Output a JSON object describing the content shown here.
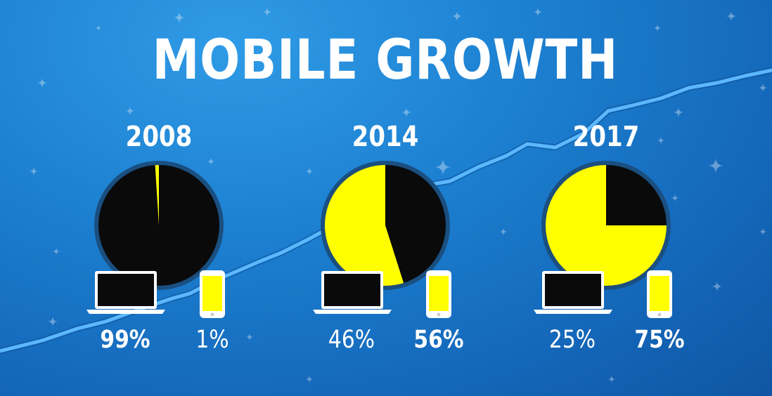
{
  "title": "MOBILE GROWTH",
  "colors": {
    "background": "#1a78cc",
    "trend_line": "#5cb8ff",
    "mobile": "#ffff00",
    "desktop": "#0a0a0a",
    "pie_border": "#1a4f80",
    "text": "#ffffff"
  },
  "icons": {
    "desktop": "laptop-icon",
    "mobile": "smartphone-icon"
  },
  "chart_data": [
    {
      "type": "pie",
      "title": "2008",
      "categories": [
        "desktop",
        "mobile"
      ],
      "values": [
        99,
        1
      ],
      "value_labels": [
        "99%",
        "1%"
      ]
    },
    {
      "type": "pie",
      "title": "2014",
      "categories": [
        "desktop",
        "mobile"
      ],
      "values": [
        46,
        56
      ],
      "value_labels": [
        "46%",
        "56%"
      ]
    },
    {
      "type": "pie",
      "title": "2017",
      "categories": [
        "desktop",
        "mobile"
      ],
      "values": [
        25,
        75
      ],
      "value_labels": [
        "25%",
        "75%"
      ]
    }
  ]
}
